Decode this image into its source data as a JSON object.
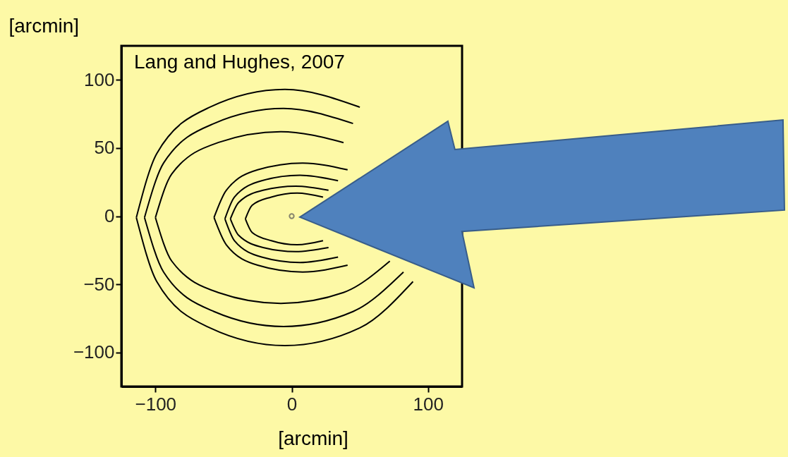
{
  "chart_data": {
    "type": "line",
    "xlabel": "[arcmin]",
    "ylabel": "[arcmin]",
    "annotations": [
      "Lang and Hughes, 2007"
    ],
    "xlim": [
      -125,
      125
    ],
    "ylim": [
      -125,
      125
    ],
    "xticks": [
      -100,
      0,
      100
    ],
    "yticks": [
      -100,
      -50,
      0,
      50,
      100
    ],
    "grid": false,
    "line_style": "solid",
    "marker": "none",
    "series": [
      {
        "color": "#000000",
        "x": [
          -114,
          -99,
          -60,
          -5,
          50
        ],
        "values": [
          -1,
          46,
          80,
          93,
          80
        ]
      },
      {
        "color": "#000000",
        "x": [
          -114,
          -99,
          -60,
          -5,
          50,
          89
        ],
        "values": [
          -1,
          -48,
          -82,
          -95,
          -82,
          -48
        ]
      },
      {
        "color": "#000000",
        "x": [
          -108,
          -94,
          -57,
          -6,
          45
        ],
        "values": [
          -1,
          39,
          68,
          79,
          68
        ]
      },
      {
        "color": "#000000",
        "x": [
          -108,
          -94,
          -57,
          -6,
          45,
          82
        ],
        "values": [
          -1,
          -41,
          -70,
          -81,
          -70,
          -41
        ]
      },
      {
        "color": "#000000",
        "x": [
          -100,
          -88,
          -54,
          -8,
          38
        ],
        "values": [
          -1,
          31,
          54,
          62,
          54
        ]
      },
      {
        "color": "#000000",
        "x": [
          -100,
          -88,
          -54,
          -8,
          38,
          72
        ],
        "values": [
          -1,
          -33,
          -56,
          -64,
          -56,
          -33
        ]
      },
      {
        "color": "#000000",
        "x": [
          -57,
          -48,
          -25,
          8,
          41
        ],
        "values": [
          -1,
          19,
          34,
          39,
          34
        ]
      },
      {
        "color": "#000000",
        "x": [
          -57,
          -48,
          -25,
          8,
          41
        ],
        "values": [
          -1,
          -21,
          -36,
          -41,
          -36
        ]
      },
      {
        "color": "#000000",
        "x": [
          -49,
          -42,
          -22,
          6,
          34
        ],
        "values": [
          -2,
          14,
          26,
          30,
          26
        ]
      },
      {
        "color": "#000000",
        "x": [
          -49,
          -42,
          -22,
          6,
          34
        ],
        "values": [
          -2,
          -18,
          -30,
          -34,
          -30
        ]
      },
      {
        "color": "#000000",
        "x": [
          -45,
          -39,
          -21,
          3,
          27
        ],
        "values": [
          -2,
          10,
          19,
          22,
          19
        ]
      },
      {
        "color": "#000000",
        "x": [
          -45,
          -39,
          -21,
          3,
          27
        ],
        "values": [
          -2,
          -14,
          -23,
          -26,
          -23
        ]
      },
      {
        "color": "#000000",
        "x": [
          -34,
          -29,
          -15,
          4,
          23
        ],
        "values": [
          -2,
          8,
          14,
          17,
          14
        ]
      },
      {
        "color": "#000000",
        "x": [
          -34,
          -29,
          -15,
          4,
          23
        ],
        "values": [
          -2,
          -12,
          -18,
          -21,
          -18
        ]
      },
      {
        "type": "scatter",
        "marker": "circle",
        "color": "#555555",
        "x": [
          0
        ],
        "values": [
          0
        ]
      }
    ]
  }
}
